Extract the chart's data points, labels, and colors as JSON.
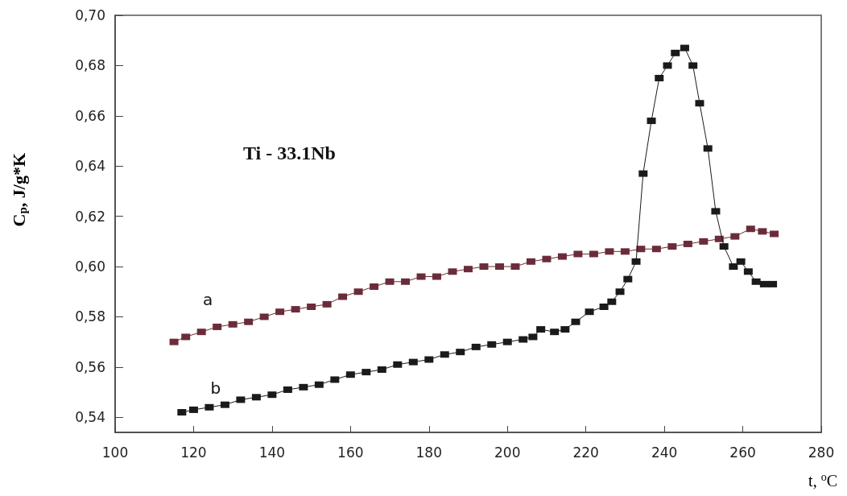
{
  "chart_data": {
    "type": "line",
    "ylabel": "C$_{p}$, J/g*K",
    "xlabel": "t, $^{o}$C",
    "annotations": [
      "Ti - 33.1Nb"
    ],
    "xlim": [
      100,
      280
    ],
    "xticks": [
      100,
      120,
      140,
      160,
      180,
      200,
      220,
      240,
      260,
      280
    ],
    "ylim": [
      0.534,
      0.7
    ],
    "yticks": [
      {
        "value": 0.54,
        "label": "0,54"
      },
      {
        "value": 0.56,
        "label": "0,56"
      },
      {
        "value": 0.58,
        "label": "0,58"
      },
      {
        "value": 0.6,
        "label": "0,60"
      },
      {
        "value": 0.62,
        "label": "0,62"
      },
      {
        "value": 0.64,
        "label": "0,64"
      },
      {
        "value": 0.66,
        "label": "0,66"
      },
      {
        "value": 0.68,
        "label": "0,68"
      },
      {
        "value": 0.7,
        "label": "0,70"
      }
    ],
    "grid": false,
    "legend": false,
    "marker": "square",
    "line_style": "solid",
    "series": [
      {
        "name": "a",
        "color": "#6b2c3a",
        "x": [
          115,
          118,
          122,
          126,
          130,
          134,
          138,
          142,
          146,
          150,
          154,
          158,
          162,
          166,
          170,
          174,
          178,
          182,
          186,
          190,
          194,
          198,
          202,
          206,
          210,
          214,
          218,
          222,
          226,
          230,
          234,
          238,
          242,
          246,
          250,
          254,
          258,
          262,
          265,
          268
        ],
        "values": [
          0.57,
          0.572,
          0.574,
          0.576,
          0.577,
          0.578,
          0.58,
          0.582,
          0.583,
          0.584,
          0.585,
          0.588,
          0.59,
          0.592,
          0.594,
          0.594,
          0.596,
          0.596,
          0.598,
          0.599,
          0.6,
          0.6,
          0.6,
          0.602,
          0.603,
          0.604,
          0.605,
          0.605,
          0.606,
          0.606,
          0.607,
          0.607,
          0.608,
          0.609,
          0.61,
          0.611,
          0.612,
          0.615,
          0.614,
          0.613
        ]
      },
      {
        "name": "b",
        "color": "#1a1a1a",
        "x": [
          117,
          120,
          124,
          128,
          132,
          136,
          140,
          144,
          148,
          152,
          156,
          160,
          164,
          168,
          172,
          176,
          180,
          184,
          188,
          192,
          196,
          200,
          204,
          206.5,
          208.5,
          212,
          214.7,
          217.4,
          220.9,
          224.6,
          226.6,
          228.7,
          230.7,
          232.8,
          234.6,
          236.7,
          238.7,
          240.8,
          242.8,
          245.2,
          247.3,
          249,
          251.1,
          253.1,
          255.2,
          257.6,
          259.5,
          261.4,
          263.4,
          265.5,
          267.6
        ],
        "values": [
          0.542,
          0.543,
          0.544,
          0.545,
          0.547,
          0.548,
          0.549,
          0.551,
          0.552,
          0.553,
          0.555,
          0.557,
          0.558,
          0.559,
          0.561,
          0.562,
          0.563,
          0.565,
          0.566,
          0.568,
          0.569,
          0.57,
          0.571,
          0.572,
          0.575,
          0.574,
          0.575,
          0.578,
          0.582,
          0.584,
          0.586,
          0.59,
          0.595,
          0.602,
          0.637,
          0.658,
          0.675,
          0.68,
          0.685,
          0.687,
          0.68,
          0.665,
          0.647,
          0.622,
          0.608,
          0.6,
          0.602,
          0.598,
          0.594,
          0.593,
          0.593
        ]
      }
    ]
  }
}
